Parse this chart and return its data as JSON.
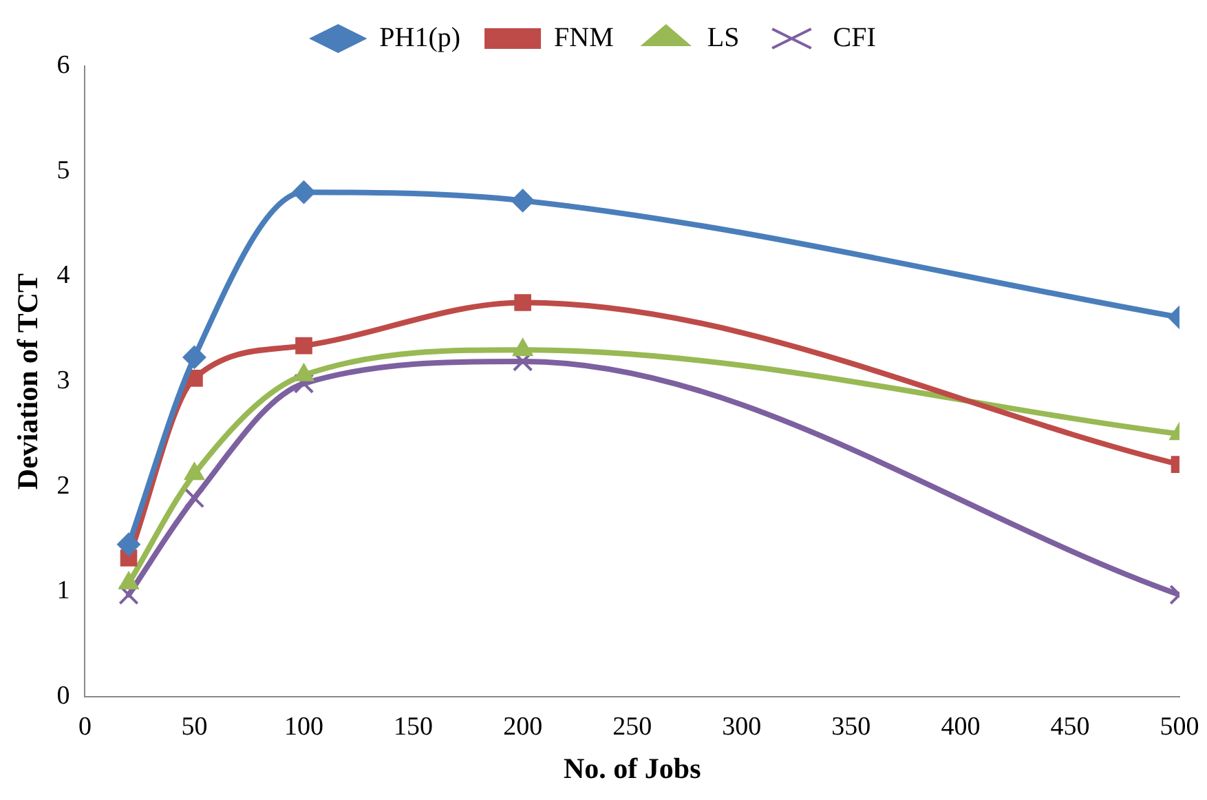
{
  "chart_data": {
    "type": "line",
    "xlabel": "No. of Jobs",
    "ylabel": "Deviation of TCT",
    "x": [
      20,
      50,
      100,
      200,
      500
    ],
    "series": [
      {
        "name": "PH1(p)",
        "color": "#4a7ebb",
        "marker": "diamond",
        "values": [
          1.45,
          3.23,
          4.8,
          4.72,
          3.61
        ]
      },
      {
        "name": "FNM",
        "color": "#be4b48",
        "marker": "square",
        "values": [
          1.32,
          3.03,
          3.34,
          3.75,
          2.21
        ]
      },
      {
        "name": "LS",
        "color": "#98b954",
        "marker": "triangle",
        "values": [
          1.08,
          2.12,
          3.06,
          3.3,
          2.5
        ]
      },
      {
        "name": "CFI",
        "color": "#7d60a0",
        "marker": "cross",
        "values": [
          0.97,
          1.89,
          2.98,
          3.19,
          0.97
        ]
      }
    ],
    "xlim": [
      0,
      500
    ],
    "xticks": [
      0,
      50,
      100,
      150,
      200,
      250,
      300,
      350,
      400,
      450,
      500
    ],
    "ylim": [
      0,
      6
    ],
    "yticks": [
      0,
      1,
      2,
      3,
      4,
      5,
      6
    ],
    "grid": false,
    "legend": "top",
    "line_style": "solid"
  }
}
